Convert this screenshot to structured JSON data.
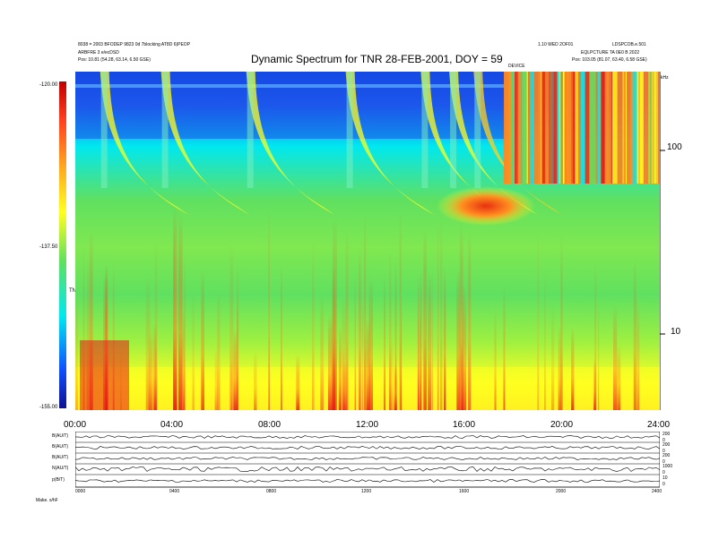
{
  "header": {
    "left_line1": "8038 = 2003 BFODEP 9823 0d 7blocking  AT8D 6)PEOP",
    "left_line2": "ARBFRE 3 e/ecDSD",
    "left_pos": "Pos:   10.81 (54.28, 63.14, 6.50 GSE)",
    "title": "Dynamic Spectrum for TNR 28-FEB-2001, DOY = 59",
    "right_line1a": "1.10 WED 2OF01",
    "right_line1b": "LDSPCOB.e.501",
    "right_line2": "EQLPCTURE  TA 0E0 B 2022",
    "right_pos": "Pos:   103.05 (81.07, 63.40, 6.58 GSE)",
    "small_mark": "DEVICE"
  },
  "colors": {
    "background": "#ffffff",
    "blue": "#1040e0",
    "cyan": "#00e8f0",
    "green": "#60e060",
    "yellow": "#ffff20",
    "orange": "#ff9020",
    "red": "#e81818"
  },
  "colorbar": {
    "labels": [
      "-120.00",
      "-137.50",
      "-155.00"
    ],
    "mid_label": "TNR"
  },
  "chart_data": {
    "type": "heatmap",
    "title": "Dynamic Spectrum for TNR 28-FEB-2001, DOY = 59",
    "x_ticks": [
      "00:00",
      "04:00",
      "08:00",
      "12:00",
      "16:00",
      "20:00",
      "24:00"
    ],
    "xlim": [
      "00:00",
      "24:00"
    ],
    "y_ticks": [
      "100",
      "10"
    ],
    "y_unit_label": "kHz",
    "y_scale": "log",
    "colorbar_range": [
      -155.0,
      -120.0
    ],
    "features": [
      {
        "label": "type III burst",
        "time": "01:10"
      },
      {
        "label": "type III burst",
        "time": "03:40"
      },
      {
        "label": "type III burst",
        "time": "07:10"
      },
      {
        "label": "type III burst",
        "time": "11:15"
      },
      {
        "label": "type III burst",
        "time": "14:20"
      },
      {
        "label": "type III burst",
        "time": "15:30"
      },
      {
        "label": "strong emission",
        "time": "16:30"
      }
    ]
  },
  "panels": {
    "labels": [
      "B(AU/T)",
      "B(AU/T)",
      "B(AU/T)",
      "N(AU/T)",
      "p(B/T)"
    ],
    "right_ticks": [
      [
        "200",
        "0"
      ],
      [
        "200",
        "0"
      ],
      [
        "200",
        "0"
      ],
      [
        "1000",
        "0"
      ],
      [
        "10",
        "0"
      ]
    ],
    "x_ticks": [
      "0000",
      "0400",
      "0800",
      "1200",
      "1600",
      "2000",
      "2400"
    ],
    "footer": "Make. s/hF"
  }
}
